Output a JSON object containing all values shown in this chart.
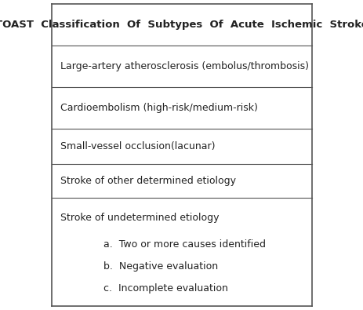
{
  "title": "TOAST  Classification  Of  Subtypes  Of  Acute  Ischemic  Stroke",
  "rows": [
    {
      "text": "Large-artery atherosclerosis (embolus/thrombosis)",
      "subitems": []
    },
    {
      "text": "Cardioembolism (high-risk/medium-risk)",
      "subitems": []
    },
    {
      "text": "Small-vessel occlusion(lacunar)",
      "subitems": []
    },
    {
      "text": "Stroke of other determined etiology",
      "subitems": []
    },
    {
      "text": "Stroke of undetermined etiology",
      "subitems": [
        "a.  Two or more causes identified",
        "b.  Negative evaluation",
        "c.  Incomplete evaluation"
      ]
    }
  ],
  "bg_color": "#ffffff",
  "border_color": "#555555",
  "text_color": "#222222",
  "title_fontsize": 9.5,
  "body_fontsize": 9.0,
  "fig_width": 4.64,
  "fig_height": 3.95
}
